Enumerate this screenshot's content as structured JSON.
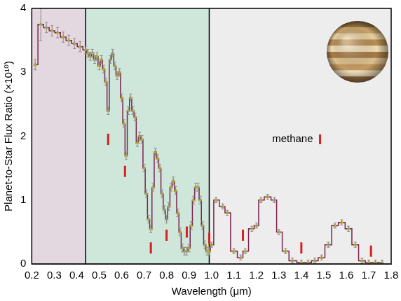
{
  "chart_data": {
    "type": "line",
    "x_label": "Wavelength (μm)",
    "y_label": "Planet-to-Star Flux Ratio (×10¹⁰)",
    "xlim": [
      0.2,
      1.8
    ],
    "xticks": [
      0.2,
      0.3,
      0.4,
      0.5,
      0.6,
      0.7,
      0.8,
      0.9,
      {
        "value": 1,
        "label": "1.0"
      },
      1.1,
      1.2,
      1.3,
      1.4,
      1.5,
      1.6,
      1.7,
      1.8
    ],
    "ylim": [
      0,
      4
    ],
    "yticks": [
      0,
      1,
      2,
      3,
      4
    ],
    "grid": false,
    "legend": false,
    "line_style": "stepped",
    "marker": "triangle",
    "color": "#7b2350",
    "marker_color": "#c9c23a",
    "x": [
      0.215,
      0.24,
      0.265,
      0.29,
      0.315,
      0.34,
      0.365,
      0.39,
      0.415,
      0.44,
      0.45,
      0.46,
      0.47,
      0.48,
      0.49,
      0.5,
      0.51,
      0.52,
      0.53,
      0.54,
      0.55,
      0.56,
      0.57,
      0.58,
      0.59,
      0.6,
      0.61,
      0.62,
      0.63,
      0.64,
      0.65,
      0.66,
      0.67,
      0.68,
      0.69,
      0.7,
      0.71,
      0.72,
      0.73,
      0.74,
      0.75,
      0.76,
      0.77,
      0.78,
      0.79,
      0.8,
      0.81,
      0.82,
      0.83,
      0.84,
      0.85,
      0.86,
      0.87,
      0.88,
      0.89,
      0.9,
      0.91,
      0.92,
      0.93,
      0.94,
      0.95,
      0.96,
      0.97,
      0.98,
      0.99,
      1.0,
      1.02,
      1.05,
      1.07,
      1.1,
      1.13,
      1.15,
      1.18,
      1.2,
      1.22,
      1.25,
      1.28,
      1.3,
      1.33,
      1.36,
      1.4,
      1.43,
      1.46,
      1.49,
      1.52,
      1.55,
      1.58,
      1.61,
      1.64,
      1.67,
      1.7,
      1.73,
      1.76
    ],
    "values": [
      3.12,
      3.75,
      3.7,
      3.65,
      3.62,
      3.55,
      3.5,
      3.45,
      3.4,
      3.35,
      3.3,
      3.25,
      3.3,
      3.2,
      3.25,
      3.1,
      3.2,
      3.05,
      2.85,
      2.4,
      3.2,
      3.3,
      3.1,
      2.95,
      3.0,
      2.6,
      2.2,
      1.7,
      2.4,
      2.6,
      2.4,
      2.3,
      1.9,
      2.0,
      1.95,
      1.5,
      1.1,
      0.7,
      0.55,
      1.2,
      1.75,
      1.65,
      1.5,
      1.1,
      0.85,
      0.7,
      0.9,
      1.2,
      1.3,
      1.15,
      0.8,
      0.5,
      0.25,
      0.2,
      0.2,
      0.25,
      0.6,
      1.0,
      1.2,
      1.2,
      1.0,
      0.6,
      0.3,
      0.2,
      0.2,
      0.3,
      1.0,
      0.9,
      0.8,
      0.2,
      0.1,
      0.2,
      0.55,
      0.6,
      1.0,
      1.05,
      1.0,
      0.5,
      0.2,
      0.05,
      0.02,
      0.02,
      0.05,
      0.1,
      0.3,
      0.6,
      0.65,
      0.55,
      0.3,
      0.05,
      0.02,
      0.02,
      0.02
    ],
    "errors": [
      0.08,
      0.25,
      0.08,
      0.08,
      0.08,
      0.08,
      0.08,
      0.08,
      0.08,
      0.06,
      0.06,
      0.06,
      0.06,
      0.06,
      0.06,
      0.06,
      0.06,
      0.06,
      0.06,
      0.06,
      0.06,
      0.06,
      0.06,
      0.06,
      0.06,
      0.06,
      0.06,
      0.06,
      0.06,
      0.06,
      0.06,
      0.06,
      0.06,
      0.06,
      0.06,
      0.06,
      0.06,
      0.06,
      0.06,
      0.06,
      0.06,
      0.06,
      0.06,
      0.06,
      0.06,
      0.06,
      0.06,
      0.06,
      0.06,
      0.06,
      0.06,
      0.06,
      0.06,
      0.06,
      0.06,
      0.06,
      0.06,
      0.06,
      0.06,
      0.06,
      0.06,
      0.06,
      0.06,
      0.06,
      0.06,
      0.04,
      0.04,
      0.04,
      0.04,
      0.04,
      0.04,
      0.04,
      0.04,
      0.04,
      0.04,
      0.04,
      0.04,
      0.04,
      0.04,
      0.04,
      0.04,
      0.04,
      0.04,
      0.04,
      0.04,
      0.04,
      0.04,
      0.04,
      0.04,
      0.04,
      0.04,
      0.04,
      0.04
    ],
    "bands": [
      {
        "from": 0.2,
        "to": 0.44,
        "color": "#e4d8e0"
      },
      {
        "from": 0.44,
        "to": 0.99,
        "color": "#cfe6da"
      },
      {
        "from": 0.99,
        "to": 1.8,
        "color": "#ededed"
      }
    ],
    "markers": {
      "name": "methane",
      "color": "#d42020",
      "x": [
        0.54,
        0.615,
        0.73,
        0.8,
        0.89,
        0.99,
        1.14,
        1.4,
        1.71
      ],
      "y": [
        1.95,
        1.45,
        0.25,
        0.45,
        0.5,
        0.4,
        0.45,
        0.25,
        0.2
      ]
    }
  }
}
